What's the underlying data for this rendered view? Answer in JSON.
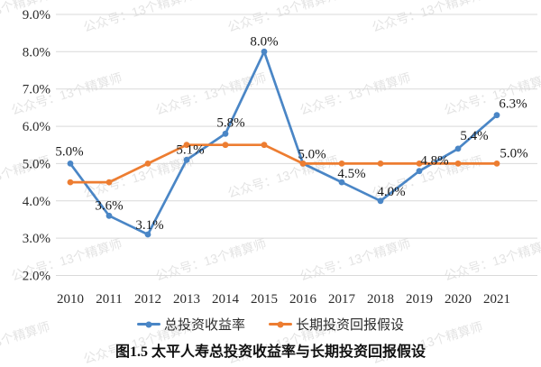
{
  "watermark": {
    "text": "公众号：13个精算师"
  },
  "caption": "图1.5 太平人寿总投资收益率与长期投资回报假设",
  "chart_data": {
    "type": "line",
    "title": "图1.5 太平人寿总投资收益率与长期投资回报假设",
    "categories": [
      "2010",
      "2011",
      "2012",
      "2013",
      "2014",
      "2015",
      "2016",
      "2017",
      "2018",
      "2019",
      "2020",
      "2021"
    ],
    "xlabel": "",
    "ylabel": "",
    "ylim": [
      2.0,
      9.0
    ],
    "y_tick_step": 1.0,
    "y_ticks": [
      "2.0%",
      "3.0%",
      "4.0%",
      "5.0%",
      "6.0%",
      "7.0%",
      "8.0%",
      "9.0%"
    ],
    "grid": true,
    "gridline_color": "#D9D9D9",
    "legend_position": "bottom",
    "series": [
      {
        "name": "总投资收益率",
        "color": "#4A86C6",
        "values": [
          5.0,
          3.6,
          3.1,
          5.1,
          5.8,
          8.0,
          5.0,
          4.5,
          4.0,
          4.8,
          5.4,
          6.3
        ],
        "point_labels": [
          "5.0%",
          "3.6%",
          "3.1%",
          "5.1%",
          "5.8%",
          "8.0%",
          "5.0%",
          "4.5%",
          "4.0%",
          "4.8%",
          "5.4%",
          "6.3%"
        ],
        "label_color": "#1a1a1a"
      },
      {
        "name": "长期投资回报假设",
        "color": "#ED7D31",
        "values": [
          4.5,
          4.5,
          5.0,
          5.5,
          5.5,
          5.5,
          5.0,
          5.0,
          5.0,
          5.0,
          5.0,
          5.0
        ],
        "end_label": "5.0%",
        "end_label_color": "#C00000"
      }
    ]
  }
}
